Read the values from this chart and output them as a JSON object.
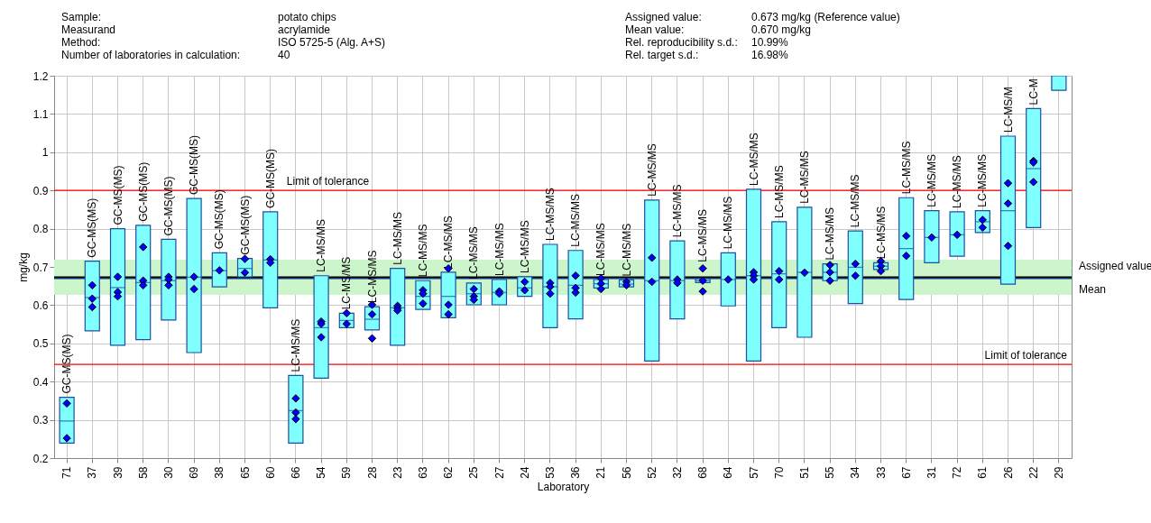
{
  "chart_data": {
    "type": "box",
    "xlabel": "Laboratory",
    "ylabel": "mg/kg",
    "categories": [
      "71",
      "37",
      "39",
      "58",
      "30",
      "69",
      "38",
      "65",
      "60",
      "66",
      "54",
      "59",
      "28",
      "23",
      "63",
      "62",
      "25",
      "27",
      "24",
      "53",
      "36",
      "21",
      "56",
      "52",
      "32",
      "68",
      "64",
      "57",
      "70",
      "51",
      "55",
      "34",
      "33",
      "67",
      "31",
      "72",
      "61",
      "26",
      "22",
      "29"
    ],
    "ylim": [
      0.2,
      1.2
    ],
    "yticks": [
      0.2,
      0.3,
      0.4,
      0.5,
      0.6,
      0.7,
      0.8,
      0.9,
      1,
      1.1,
      1.2
    ],
    "grid": true,
    "series": [
      {
        "color": "#80ffff",
        "boxes": [
          {
            "low": 0.239,
            "q1": 0.239,
            "median": 0.297,
            "q3": 0.359,
            "high": 0.359
          },
          {
            "low": 0.533,
            "q1": 0.533,
            "median": 0.62,
            "q3": 0.715,
            "high": 0.715
          },
          {
            "low": 0.495,
            "q1": 0.495,
            "median": 0.646,
            "q3": 0.8,
            "high": 0.8
          },
          {
            "low": 0.51,
            "q1": 0.51,
            "median": 0.659,
            "q3": 0.809,
            "high": 0.809
          },
          {
            "low": 0.561,
            "q1": 0.561,
            "median": 0.664,
            "q3": 0.772,
            "high": 0.772
          },
          {
            "low": 0.476,
            "q1": 0.476,
            "median": 0.673,
            "q3": 0.879,
            "high": 0.879
          },
          {
            "low": 0.648,
            "q1": 0.648,
            "median": 0.69,
            "q3": 0.737,
            "high": 0.737
          },
          {
            "low": 0.674,
            "q1": 0.674,
            "median": 0.696,
            "q3": 0.722,
            "high": 0.722
          },
          {
            "low": 0.593,
            "q1": 0.593,
            "median": 0.718,
            "q3": 0.844,
            "high": 0.844
          },
          {
            "low": 0.239,
            "q1": 0.239,
            "median": 0.324,
            "q3": 0.416,
            "high": 0.416
          },
          {
            "low": 0.409,
            "q1": 0.409,
            "median": 0.541,
            "q3": 0.677,
            "high": 0.677
          },
          {
            "low": 0.541,
            "q1": 0.541,
            "median": 0.56,
            "q3": 0.579,
            "high": 0.579
          },
          {
            "low": 0.535,
            "q1": 0.535,
            "median": 0.563,
            "q3": 0.596,
            "high": 0.596
          },
          {
            "low": 0.495,
            "q1": 0.495,
            "median": 0.593,
            "q3": 0.696,
            "high": 0.696
          },
          {
            "low": 0.589,
            "q1": 0.589,
            "median": 0.623,
            "q3": 0.664,
            "high": 0.664
          },
          {
            "low": 0.567,
            "q1": 0.567,
            "median": 0.623,
            "q3": 0.686,
            "high": 0.686
          },
          {
            "low": 0.601,
            "q1": 0.601,
            "median": 0.63,
            "q3": 0.658,
            "high": 0.658
          },
          {
            "low": 0.601,
            "q1": 0.601,
            "median": 0.633,
            "q3": 0.667,
            "high": 0.667
          },
          {
            "low": 0.623,
            "q1": 0.623,
            "median": 0.645,
            "q3": 0.674,
            "high": 0.674
          },
          {
            "low": 0.541,
            "q1": 0.541,
            "median": 0.648,
            "q3": 0.759,
            "high": 0.759
          },
          {
            "low": 0.564,
            "q1": 0.564,
            "median": 0.652,
            "q3": 0.743,
            "high": 0.743
          },
          {
            "low": 0.645,
            "q1": 0.645,
            "median": 0.656,
            "q3": 0.667,
            "high": 0.667
          },
          {
            "low": 0.648,
            "q1": 0.648,
            "median": 0.655,
            "q3": 0.666,
            "high": 0.666
          },
          {
            "low": 0.454,
            "q1": 0.454,
            "median": 0.664,
            "q3": 0.875,
            "high": 0.875
          },
          {
            "low": 0.564,
            "q1": 0.564,
            "median": 0.664,
            "q3": 0.768,
            "high": 0.768
          },
          {
            "low": 0.659,
            "q1": 0.659,
            "median": 0.664,
            "q3": 0.669,
            "high": 0.669
          },
          {
            "low": 0.598,
            "q1": 0.598,
            "median": 0.667,
            "q3": 0.737,
            "high": 0.737
          },
          {
            "low": 0.454,
            "q1": 0.454,
            "median": 0.677,
            "q3": 0.903,
            "high": 0.903
          },
          {
            "low": 0.541,
            "q1": 0.541,
            "median": 0.682,
            "q3": 0.818,
            "high": 0.818
          },
          {
            "low": 0.516,
            "q1": 0.516,
            "median": 0.686,
            "q3": 0.856,
            "high": 0.856
          },
          {
            "low": 0.664,
            "q1": 0.664,
            "median": 0.686,
            "q3": 0.708,
            "high": 0.708
          },
          {
            "low": 0.604,
            "q1": 0.604,
            "median": 0.699,
            "q3": 0.794,
            "high": 0.794
          },
          {
            "low": 0.693,
            "q1": 0.693,
            "median": 0.702,
            "q3": 0.711,
            "high": 0.711
          },
          {
            "low": 0.615,
            "q1": 0.615,
            "median": 0.748,
            "q3": 0.881,
            "high": 0.881
          },
          {
            "low": 0.711,
            "q1": 0.711,
            "median": 0.777,
            "q3": 0.847,
            "high": 0.847
          },
          {
            "low": 0.728,
            "q1": 0.728,
            "median": 0.784,
            "q3": 0.844,
            "high": 0.844
          },
          {
            "low": 0.79,
            "q1": 0.79,
            "median": 0.818,
            "q3": 0.847,
            "high": 0.847
          },
          {
            "low": 0.655,
            "q1": 0.655,
            "median": 0.847,
            "q3": 1.042,
            "high": 1.042
          },
          {
            "low": 0.803,
            "q1": 0.803,
            "median": 0.957,
            "q3": 1.114,
            "high": 1.114
          },
          {
            "low": 1.162,
            "q1": 1.162,
            "median": null,
            "q3": 1.2,
            "high": 1.2
          }
        ]
      },
      {
        "type": "scatter",
        "color": "#0000ff",
        "marker": "diamond",
        "x": [
          "71",
          "71",
          "37",
          "37",
          "37",
          "39",
          "39",
          "39",
          "58",
          "58",
          "58",
          "30",
          "30",
          "30",
          "69",
          "69",
          "38",
          "65",
          "65",
          "60",
          "60",
          "66",
          "66",
          "66",
          "54",
          "54",
          "54",
          "59",
          "59",
          "28",
          "28",
          "28",
          "23",
          "23",
          "23",
          "63",
          "63",
          "63",
          "62",
          "62",
          "62",
          "25",
          "25",
          "25",
          "27",
          "27",
          "24",
          "24",
          "53",
          "53",
          "53",
          "36",
          "36",
          "36",
          "21",
          "21",
          "21",
          "56",
          "56",
          "52",
          "52",
          "32",
          "32",
          "68",
          "68",
          "68",
          "64",
          "57",
          "57",
          "57",
          "70",
          "70",
          "51",
          "55",
          "55",
          "55",
          "34",
          "34",
          "33",
          "33",
          "33",
          "67",
          "67",
          "31",
          "72",
          "61",
          "61",
          "26",
          "26",
          "26",
          "22",
          "22",
          "22"
        ],
        "values": [
          0.343,
          0.252,
          0.652,
          0.617,
          0.595,
          0.674,
          0.634,
          0.623,
          0.752,
          0.664,
          0.652,
          0.674,
          0.667,
          0.652,
          0.674,
          0.642,
          0.691,
          0.721,
          0.685,
          0.72,
          0.711,
          0.356,
          0.319,
          0.302,
          0.557,
          0.551,
          0.516,
          0.579,
          0.551,
          0.601,
          0.576,
          0.513,
          0.598,
          0.592,
          0.586,
          0.639,
          0.63,
          0.604,
          0.696,
          0.601,
          0.576,
          0.642,
          0.623,
          0.614,
          0.636,
          0.63,
          0.661,
          0.639,
          0.658,
          0.648,
          0.63,
          0.677,
          0.645,
          0.633,
          0.67,
          0.656,
          0.642,
          0.661,
          0.652,
          0.724,
          0.661,
          0.667,
          0.658,
          0.696,
          0.664,
          0.636,
          0.667,
          0.686,
          0.677,
          0.667,
          0.689,
          0.667,
          0.685,
          0.705,
          0.686,
          0.664,
          0.708,
          0.677,
          0.715,
          0.702,
          0.689,
          0.781,
          0.729,
          0.777,
          0.784,
          0.823,
          0.803,
          0.919,
          0.866,
          0.755,
          0.977,
          0.973,
          0.922
        ]
      }
    ],
    "bands": [
      {
        "axis": "y",
        "from": 0.627,
        "to": 0.719,
        "color": "#ccf5cc"
      }
    ],
    "ref_lines": [
      {
        "axis": "y",
        "value": 0.9,
        "label": "Limit of tolerance",
        "color": "#ff0000"
      },
      {
        "axis": "y",
        "value": 0.445,
        "label": "Limit of tolerance",
        "color": "#ff0000"
      },
      {
        "axis": "y",
        "value": 0.67,
        "label": "Mean",
        "color": "#3070c0"
      },
      {
        "axis": "y",
        "value": 0.673,
        "label": "Assigned value",
        "color": "#000000"
      }
    ],
    "annotations": [
      "Sample:",
      "Measurand",
      "Method:",
      "Number of laboratories in calculation:",
      "potato chips",
      "acrylamide",
      "ISO 5725-5 (Alg. A+S)",
      "40",
      "Assigned value:",
      "Mean value:",
      "Rel. reproducibility s.d.:",
      "Rel. target s.d.:",
      "0.673 mg/kg (Reference value)",
      "0.670 mg/kg",
      "10.99%",
      "16.98%",
      {
        "text": "GC-MS(MS)",
        "x": "71",
        "y": 0.359
      },
      {
        "text": "GC-MS(MS)",
        "x": "37",
        "y": 0.715
      },
      {
        "text": "GC-MS(MS)",
        "x": "39",
        "y": 0.8
      },
      {
        "text": "GC-MS(MS)",
        "x": "58",
        "y": 0.809
      },
      {
        "text": "GC-MS(MS)",
        "x": "30",
        "y": 0.772
      },
      {
        "text": "GC-MS(MS)",
        "x": "69",
        "y": 0.879
      },
      {
        "text": "GC-MS(MS)",
        "x": "38",
        "y": 0.737
      },
      {
        "text": "GC-MS(MS)",
        "x": "65",
        "y": 0.722
      },
      {
        "text": "GC-MS(MS)",
        "x": "60",
        "y": 0.844
      },
      {
        "text": "LC-MS/MS",
        "x": "66",
        "y": 0.416
      },
      {
        "text": "LC-MS/MS",
        "x": "54",
        "y": 0.677
      },
      {
        "text": "LC-MS/MS",
        "x": "59",
        "y": 0.579
      },
      {
        "text": "LC-MS/MS",
        "x": "28",
        "y": 0.596
      },
      {
        "text": "LC-MS/MS",
        "x": "23",
        "y": 0.696
      },
      {
        "text": "LC-MS/MS",
        "x": "63",
        "y": 0.664
      },
      {
        "text": "LC-MS/MS",
        "x": "62",
        "y": 0.686
      },
      {
        "text": "LC-MS/MS",
        "x": "25",
        "y": 0.658
      },
      {
        "text": "LC-MS/MS",
        "x": "27",
        "y": 0.667
      },
      {
        "text": "LC-MS/MS",
        "x": "24",
        "y": 0.674
      },
      {
        "text": "LC-MS/MS",
        "x": "53",
        "y": 0.759
      },
      {
        "text": "LC-MS/MS",
        "x": "36",
        "y": 0.743
      },
      {
        "text": "LC-MS/MS",
        "x": "21",
        "y": 0.667
      },
      {
        "text": "LC-MS/MS",
        "x": "56",
        "y": 0.666
      },
      {
        "text": "LC-MS/MS",
        "x": "52",
        "y": 0.875
      },
      {
        "text": "LC-MS/MS",
        "x": "32",
        "y": 0.768
      },
      {
        "text": "LC-MS/MS",
        "x": "68",
        "y": 0.703
      },
      {
        "text": "LC-MS/MS",
        "x": "64",
        "y": 0.737
      },
      {
        "text": "LC-MS/MS",
        "x": "57",
        "y": 0.903
      },
      {
        "text": "LC-MS/MS",
        "x": "70",
        "y": 0.818
      },
      {
        "text": "LC-MS/MS",
        "x": "51",
        "y": 0.856
      },
      {
        "text": "LC-MS/MS",
        "x": "55",
        "y": 0.708
      },
      {
        "text": "LC-MS/MS",
        "x": "34",
        "y": 0.794
      },
      {
        "text": "LC-MS/MS",
        "x": "33",
        "y": 0.711
      },
      {
        "text": "LC-MS/MS",
        "x": "67",
        "y": 0.881
      },
      {
        "text": "LC-MS/MS",
        "x": "31",
        "y": 0.847
      },
      {
        "text": "LC-MS/MS",
        "x": "72",
        "y": 0.844
      },
      {
        "text": "LC-MS/MS",
        "x": "61",
        "y": 0.847
      },
      {
        "text": "LC-MS/M",
        "x": "26",
        "y": 1.042
      },
      {
        "text": "LC-M",
        "x": "22",
        "y": 1.114
      }
    ]
  }
}
